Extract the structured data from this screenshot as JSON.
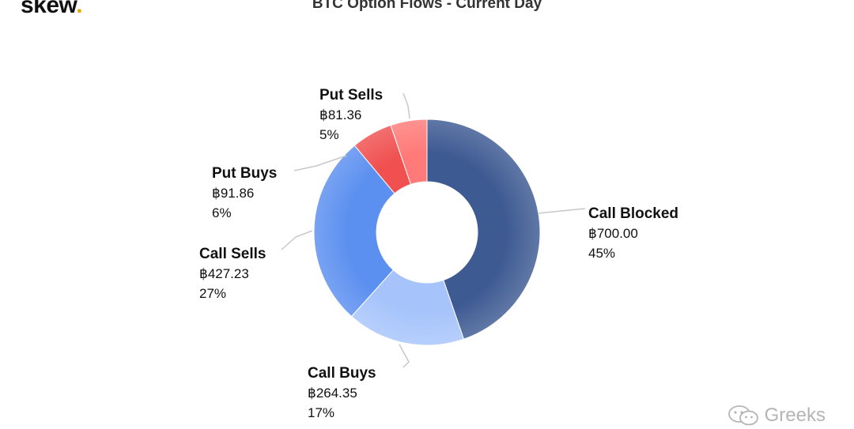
{
  "brand": {
    "name": "skew",
    "dot": "."
  },
  "watermark": {
    "text": "Greeks",
    "icon": "wechat-icon"
  },
  "chart_data": {
    "type": "pie",
    "title": "BTC Option Flows - Current Day",
    "donut": true,
    "currency_symbol": "฿",
    "slices": [
      {
        "name": "Call Blocked",
        "value": 700.0,
        "value_label": "฿700.00",
        "percent_label": "45%",
        "color": "#3d5a92"
      },
      {
        "name": "Call Buys",
        "value": 264.35,
        "value_label": "฿264.35",
        "percent_label": "17%",
        "color": "#a6c4fb"
      },
      {
        "name": "Call Sells",
        "value": 427.23,
        "value_label": "฿427.23",
        "percent_label": "27%",
        "color": "#5b8ff0"
      },
      {
        "name": "Put Buys",
        "value": 91.86,
        "value_label": "฿91.86",
        "percent_label": "6%",
        "color": "#f05050"
      },
      {
        "name": "Put Sells",
        "value": 81.36,
        "value_label": "฿81.36",
        "percent_label": "5%",
        "color": "#ff7a78"
      }
    ]
  }
}
